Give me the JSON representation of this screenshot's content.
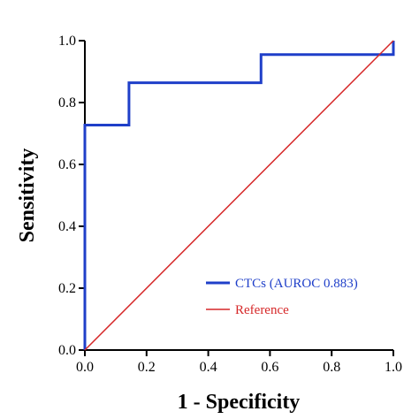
{
  "chart_data": {
    "type": "line",
    "title": "",
    "xlabel": "1 - Specificity",
    "ylabel": "Sensitivity",
    "xlim": [
      0,
      1
    ],
    "ylim": [
      0,
      1
    ],
    "x_ticks": [
      "0.0",
      "0.2",
      "0.4",
      "0.6",
      "0.8",
      "1.0"
    ],
    "y_ticks": [
      "0.0",
      "0.2",
      "0.4",
      "0.6",
      "0.8",
      "1.0"
    ],
    "grid": false,
    "legend_position": "bottom-right",
    "series": [
      {
        "name": "CTCs (AUROC 0.883)",
        "color": "#1f3fc9",
        "step": true,
        "x": [
          0.0,
          0.0,
          0.143,
          0.143,
          0.571,
          0.571,
          1.0,
          1.0
        ],
        "y": [
          0.0,
          0.727,
          0.727,
          0.864,
          0.864,
          0.955,
          0.955,
          1.0
        ]
      },
      {
        "name": "Reference",
        "color": "#d62728",
        "step": false,
        "x": [
          0.0,
          1.0
        ],
        "y": [
          0.0,
          1.0
        ]
      }
    ]
  }
}
